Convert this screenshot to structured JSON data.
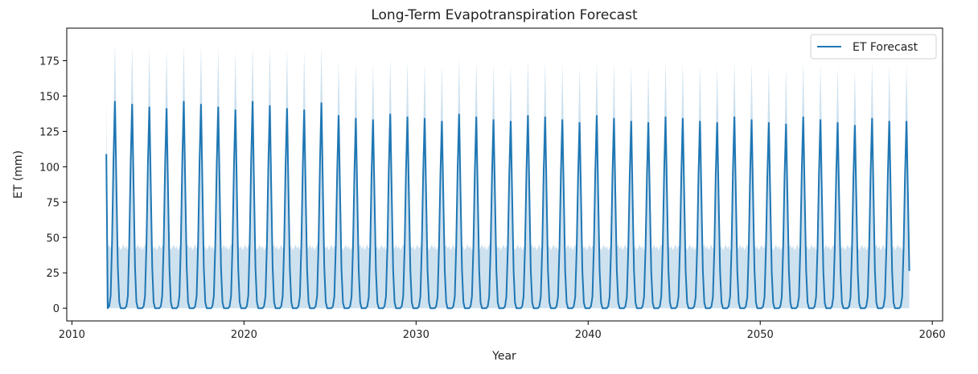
{
  "chart_data": {
    "type": "line",
    "title": "Long-Term Evapotranspiration Forecast",
    "xlabel": "Year",
    "ylabel": "ET (mm)",
    "xlim": [
      2009.7,
      2060.6
    ],
    "ylim": [
      -9,
      198
    ],
    "xticks": [
      2010,
      2020,
      2030,
      2040,
      2050,
      2060
    ],
    "yticks": [
      0,
      25,
      50,
      75,
      100,
      125,
      150,
      175
    ],
    "legend": {
      "position": "upper-right",
      "entries": [
        "ET Forecast"
      ]
    },
    "colors": {
      "line": "#1f77b4",
      "band": "#1f77b4",
      "band_opacity": 0.22
    },
    "series": [
      {
        "name": "ET Forecast",
        "start": 2012.0,
        "end": 2058.67,
        "start_value": 109,
        "annual_peaks": [
          146,
          144,
          142,
          141,
          146,
          144,
          142,
          140,
          146,
          143,
          141,
          140,
          145,
          136,
          134,
          133,
          137,
          135,
          134,
          132,
          137,
          135,
          133,
          132,
          136,
          135,
          133,
          131,
          136,
          134,
          132,
          131,
          135,
          134,
          132,
          131,
          135,
          133,
          131,
          130,
          135,
          133,
          131,
          129,
          134,
          132
        ],
        "upper_band_peaks": [
          188,
          186,
          184,
          183,
          187,
          186,
          184,
          182,
          187,
          185,
          183,
          182,
          186,
          176,
          174,
          173,
          177,
          175,
          174,
          172,
          177,
          175,
          173,
          172,
          176,
          175,
          173,
          171,
          176,
          174,
          172,
          171,
          175,
          174,
          172,
          171,
          175,
          173,
          171,
          170,
          175,
          173,
          171,
          169,
          174,
          172
        ],
        "upper_band_floor": 43
      }
    ]
  }
}
